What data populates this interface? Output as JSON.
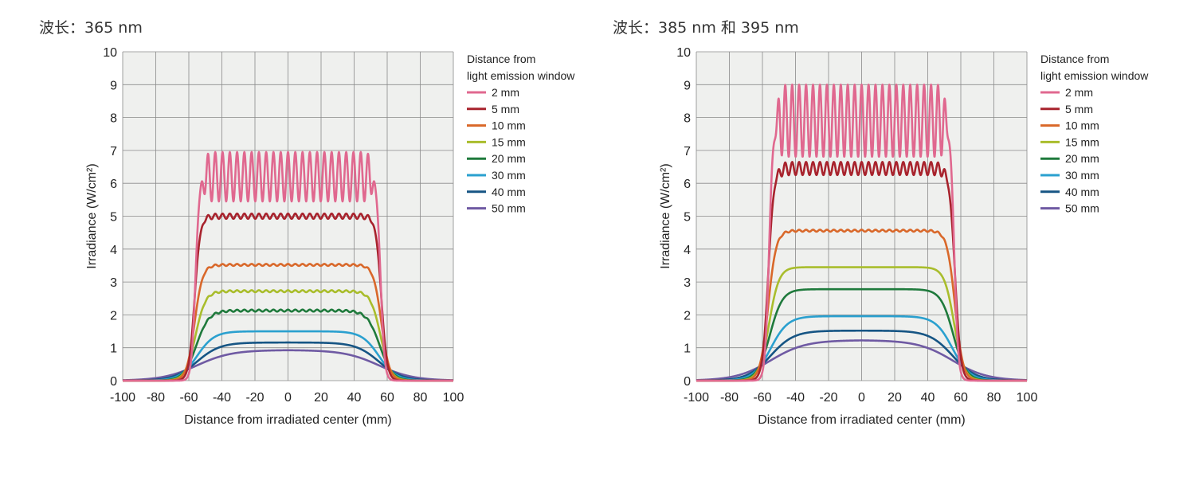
{
  "chart_data": [
    {
      "type": "line",
      "title": "波长：365 nm",
      "xlabel": "Distance from irradiated center (mm)",
      "ylabel": "Irradiance (W/cm²)",
      "xlim": [
        -100,
        100
      ],
      "ylim": [
        0,
        10
      ],
      "xticks": [
        -100,
        -80,
        -60,
        -40,
        -20,
        0,
        20,
        40,
        60,
        80,
        100
      ],
      "yticks": [
        0,
        1,
        2,
        3,
        4,
        5,
        6,
        7,
        8,
        9,
        10
      ],
      "grid": true,
      "legend_position": "right",
      "legend_title": [
        "Distance from",
        "light emission window"
      ],
      "series": [
        {
          "name": "2 mm",
          "color": "#e0688f",
          "plateau": 6.2,
          "half_width": 56,
          "edge": 1.2,
          "ripple": 0.75,
          "ripple_period": 4.4
        },
        {
          "name": "5 mm",
          "color": "#a8232d",
          "plateau": 5.0,
          "half_width": 56.5,
          "edge": 1.7,
          "ripple": 0.08,
          "ripple_period": 4.4
        },
        {
          "name": "10 mm",
          "color": "#d9682a",
          "plateau": 3.52,
          "half_width": 56.5,
          "edge": 2.4,
          "ripple": 0.03,
          "ripple_period": 4.4
        },
        {
          "name": "15 mm",
          "color": "#a9bd2c",
          "plateau": 2.72,
          "half_width": 56,
          "edge": 3.0,
          "ripple": 0.03,
          "ripple_period": 4.4
        },
        {
          "name": "20 mm",
          "color": "#1f7a3c",
          "plateau": 2.13,
          "half_width": 55.5,
          "edge": 3.8,
          "ripple": 0.03,
          "ripple_period": 4.4
        },
        {
          "name": "30 mm",
          "color": "#2aa0cf",
          "plateau": 1.5,
          "half_width": 55,
          "edge": 5.2,
          "ripple": 0,
          "ripple_period": 4.4
        },
        {
          "name": "40 mm",
          "color": "#165584",
          "plateau": 1.16,
          "half_width": 55,
          "edge": 7.0,
          "ripple": 0,
          "ripple_period": 4.4
        },
        {
          "name": "50 mm",
          "color": "#6f5aa3",
          "plateau": 0.93,
          "half_width": 55,
          "edge": 10.5,
          "ripple": 0,
          "ripple_period": 4.4
        }
      ]
    },
    {
      "type": "line",
      "title": "波长：385 nm 和 395 nm",
      "xlabel": "Distance from irradiated center (mm)",
      "ylabel": "Irradiance (W/cm²)",
      "xlim": [
        -100,
        100
      ],
      "ylim": [
        0,
        10
      ],
      "xticks": [
        -100,
        -80,
        -60,
        -40,
        -20,
        0,
        20,
        40,
        60,
        80,
        100
      ],
      "yticks": [
        0,
        1,
        2,
        3,
        4,
        5,
        6,
        7,
        8,
        9,
        10
      ],
      "grid": true,
      "legend_position": "right",
      "legend_title": [
        "Distance from",
        "light emission window"
      ],
      "series": [
        {
          "name": "2 mm",
          "color": "#e0688f",
          "plateau": 7.9,
          "half_width": 56,
          "edge": 1.2,
          "ripple": 1.1,
          "ripple_period": 4.2
        },
        {
          "name": "5 mm",
          "color": "#a8232d",
          "plateau": 6.45,
          "half_width": 56.5,
          "edge": 1.7,
          "ripple": 0.2,
          "ripple_period": 4.2
        },
        {
          "name": "10 mm",
          "color": "#d9682a",
          "plateau": 4.56,
          "half_width": 56.5,
          "edge": 2.4,
          "ripple": 0.03,
          "ripple_period": 4.2
        },
        {
          "name": "15 mm",
          "color": "#a9bd2c",
          "plateau": 3.45,
          "half_width": 56,
          "edge": 3.0,
          "ripple": 0,
          "ripple_period": 4.2
        },
        {
          "name": "20 mm",
          "color": "#1f7a3c",
          "plateau": 2.78,
          "half_width": 55.5,
          "edge": 3.8,
          "ripple": 0,
          "ripple_period": 4.2
        },
        {
          "name": "30 mm",
          "color": "#2aa0cf",
          "plateau": 1.96,
          "half_width": 55,
          "edge": 5.2,
          "ripple": 0,
          "ripple_period": 4.2
        },
        {
          "name": "40 mm",
          "color": "#165584",
          "plateau": 1.52,
          "half_width": 55,
          "edge": 7.0,
          "ripple": 0,
          "ripple_period": 4.2
        },
        {
          "name": "50 mm",
          "color": "#6f5aa3",
          "plateau": 1.23,
          "half_width": 55,
          "edge": 10.5,
          "ripple": 0,
          "ripple_period": 4.2
        }
      ]
    }
  ]
}
